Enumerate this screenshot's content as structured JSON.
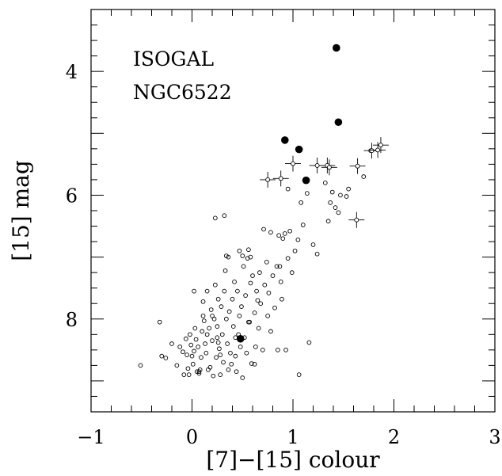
{
  "chart_data": {
    "type": "scatter",
    "title": "",
    "annotation_lines": [
      "ISOGAL",
      "NGC6522"
    ],
    "xlabel": "[7]−[15] colour",
    "ylabel": "[15] mag",
    "xlim": [
      -1,
      3
    ],
    "ylim": [
      9.5,
      3
    ],
    "y_inverted": true,
    "grid": false,
    "legend": "none",
    "x_ticks": [
      -1,
      0,
      1,
      2,
      3
    ],
    "x_tick_labels": [
      "−1",
      "0",
      "1",
      "2",
      "3"
    ],
    "y_ticks": [
      4,
      6,
      8
    ],
    "y_tick_labels": [
      "4",
      "6",
      "8"
    ],
    "series": [
      {
        "marker": "open-circle",
        "points": [
          [
            -0.51,
            8.75
          ],
          [
            -0.32,
            8.05
          ],
          [
            -0.3,
            8.6
          ],
          [
            -0.26,
            8.63
          ],
          [
            -0.2,
            8.4
          ],
          [
            -0.15,
            8.75
          ],
          [
            -0.12,
            8.45
          ],
          [
            -0.09,
            8.53
          ],
          [
            -0.06,
            8.32
          ],
          [
            -0.05,
            8.58
          ],
          [
            -0.04,
            8.8
          ],
          [
            -0.03,
            8.9
          ],
          [
            -0.02,
            8.25
          ],
          [
            -0.01,
            8.42
          ],
          [
            0.0,
            8.6
          ],
          [
            0.01,
            8.73
          ],
          [
            0.02,
            8.52
          ],
          [
            0.02,
            7.55
          ],
          [
            0.03,
            8.15
          ],
          [
            0.04,
            8.33
          ],
          [
            0.05,
            8.85
          ],
          [
            0.06,
            8.45
          ],
          [
            0.07,
            8.85
          ],
          [
            0.08,
            8.82
          ],
          [
            0.09,
            8.62
          ],
          [
            0.1,
            8.2
          ],
          [
            0.11,
            7.95
          ],
          [
            0.11,
            7.72
          ],
          [
            0.12,
            8.03
          ],
          [
            0.13,
            8.4
          ],
          [
            0.14,
            8.55
          ],
          [
            0.15,
            8.25
          ],
          [
            0.16,
            8.82
          ],
          [
            0.17,
            8.15
          ],
          [
            0.18,
            8.78
          ],
          [
            0.19,
            7.85
          ],
          [
            0.2,
            8.35
          ],
          [
            0.2,
            7.95
          ],
          [
            0.21,
            8.92
          ],
          [
            0.22,
            8.0
          ],
          [
            0.23,
            7.45
          ],
          [
            0.23,
            6.37
          ],
          [
            0.24,
            8.62
          ],
          [
            0.25,
            8.3
          ],
          [
            0.25,
            8.12
          ],
          [
            0.26,
            7.68
          ],
          [
            0.27,
            8.48
          ],
          [
            0.28,
            8.58
          ],
          [
            0.28,
            8.9
          ],
          [
            0.29,
            7.8
          ],
          [
            0.3,
            8.25
          ],
          [
            0.31,
            8.7
          ],
          [
            0.32,
            6.33
          ],
          [
            0.32,
            7.55
          ],
          [
            0.33,
            7.22
          ],
          [
            0.34,
            8.0
          ],
          [
            0.35,
            8.4
          ],
          [
            0.36,
            7.0
          ],
          [
            0.36,
            8.82
          ],
          [
            0.37,
            7.88
          ],
          [
            0.38,
            8.55
          ],
          [
            0.39,
            8.73
          ],
          [
            0.4,
            7.68
          ],
          [
            0.41,
            8.12
          ],
          [
            0.42,
            7.4
          ],
          [
            0.43,
            8.6
          ],
          [
            0.44,
            8.85
          ],
          [
            0.45,
            7.55
          ],
          [
            0.46,
            8.25
          ],
          [
            0.47,
            7.95
          ],
          [
            0.48,
            8.45
          ],
          [
            0.49,
            7.8
          ],
          [
            0.5,
            8.95
          ],
          [
            0.51,
            7.15
          ],
          [
            0.52,
            8.3
          ],
          [
            0.53,
            7.62
          ],
          [
            0.54,
            8.55
          ],
          [
            0.55,
            7.02
          ],
          [
            0.56,
            6.88
          ],
          [
            0.57,
            8.05
          ],
          [
            0.58,
            7.42
          ],
          [
            0.59,
            8.72
          ],
          [
            0.6,
            7.3
          ],
          [
            0.62,
            7.9
          ],
          [
            0.63,
            8.45
          ],
          [
            0.64,
            7.55
          ],
          [
            0.66,
            8.15
          ],
          [
            0.67,
            7.25
          ],
          [
            0.68,
            7.75
          ],
          [
            0.7,
            8.5
          ],
          [
            0.71,
            6.55
          ],
          [
            0.72,
            7.45
          ],
          [
            0.74,
            7.08
          ],
          [
            0.75,
            7.95
          ],
          [
            0.76,
            7.58
          ],
          [
            0.78,
            6.6
          ],
          [
            0.8,
            7.3
          ],
          [
            0.82,
            7.82
          ],
          [
            0.84,
            7.15
          ],
          [
            0.85,
            8.5
          ],
          [
            0.86,
            6.65
          ],
          [
            0.88,
            7.4
          ],
          [
            0.89,
            7.68
          ],
          [
            0.9,
            6.7
          ],
          [
            0.92,
            6.62
          ],
          [
            0.93,
            8.5
          ],
          [
            0.95,
            7.02
          ],
          [
            0.97,
            6.58
          ],
          [
            0.99,
            7.25
          ],
          [
            1.02,
            6.9
          ],
          [
            1.05,
            6.72
          ],
          [
            1.06,
            8.9
          ],
          [
            1.08,
            6.12
          ],
          [
            1.1,
            6.48
          ],
          [
            1.14,
            5.97
          ],
          [
            1.16,
            8.38
          ],
          [
            1.2,
            6.8
          ],
          [
            1.24,
            6.95
          ],
          [
            1.32,
            5.8
          ],
          [
            1.35,
            6.42
          ],
          [
            1.37,
            6.12
          ],
          [
            1.39,
            5.95
          ],
          [
            1.42,
            6.2
          ],
          [
            1.45,
            6.28
          ],
          [
            1.47,
            6.0
          ],
          [
            1.53,
            6.02
          ],
          [
            1.55,
            5.9
          ],
          [
            1.7,
            5.7
          ],
          [
            1.77,
            5.28
          ],
          [
            0.95,
            5.9
          ],
          [
            0.07,
            8.88
          ],
          [
            0.15,
            7.55
          ],
          [
            0.26,
            8.38
          ],
          [
            0.43,
            8.3
          ],
          [
            0.56,
            8.05
          ],
          [
            0.65,
            7.7
          ],
          [
            0.78,
            8.2
          ],
          [
            -0.08,
            8.9
          ],
          [
            0.34,
            6.98
          ],
          [
            0.47,
            6.9
          ],
          [
            0.58,
            7.0
          ],
          [
            0.5,
            6.98
          ],
          [
            0.87,
            7.15
          ],
          [
            0.62,
            8.73
          ]
        ]
      },
      {
        "marker": "open-circle-with-error-bars",
        "points": [
          [
            0.75,
            5.75
          ],
          [
            0.88,
            5.73
          ],
          [
            1.0,
            5.49
          ],
          [
            1.24,
            5.52
          ],
          [
            1.34,
            5.52
          ],
          [
            1.36,
            5.55
          ],
          [
            1.64,
            5.53
          ],
          [
            1.63,
            6.4
          ],
          [
            1.78,
            5.28
          ],
          [
            1.84,
            5.27
          ],
          [
            1.87,
            5.19
          ]
        ]
      },
      {
        "marker": "filled-circle",
        "points": [
          [
            1.43,
            3.62
          ],
          [
            1.45,
            4.82
          ],
          [
            0.92,
            5.11
          ],
          [
            1.06,
            5.26
          ],
          [
            1.13,
            5.76
          ],
          [
            0.48,
            8.32
          ]
        ]
      }
    ]
  }
}
